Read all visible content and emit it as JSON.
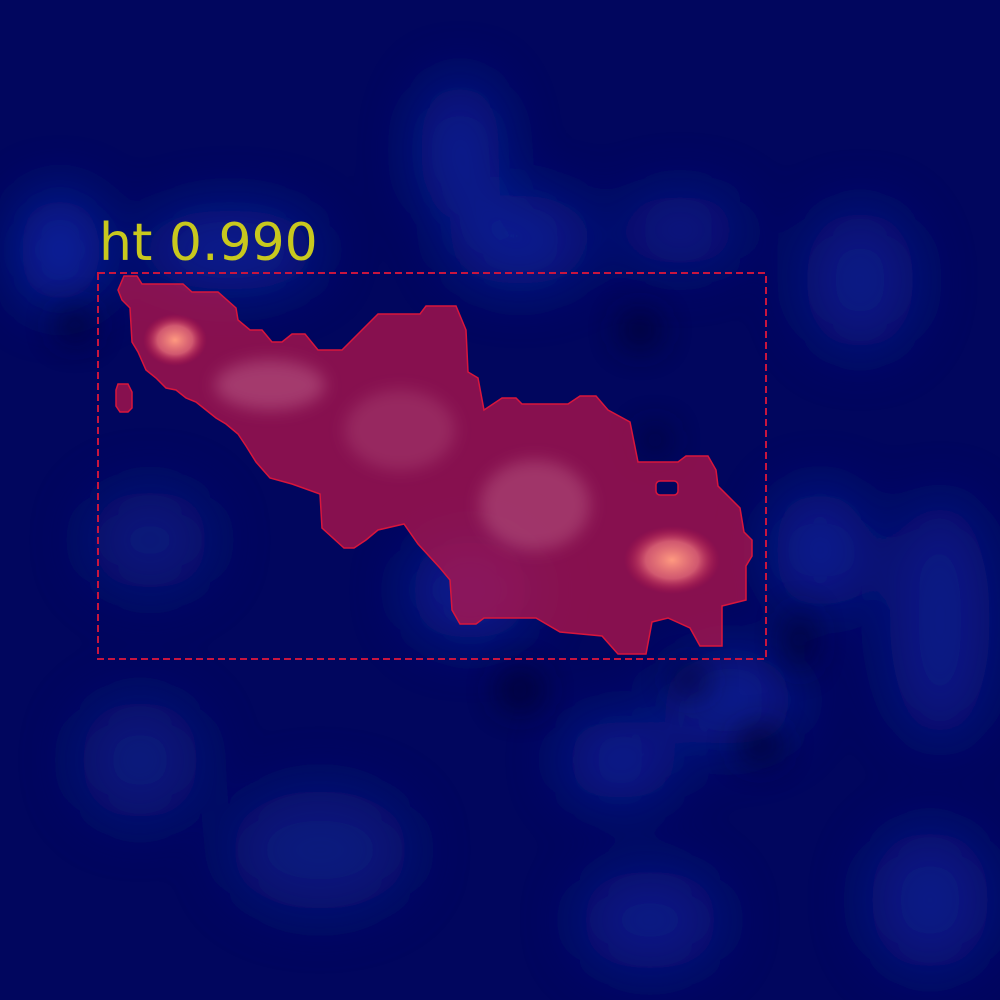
{
  "image": {
    "background_color": "#01065e",
    "heatmap_colors": {
      "low": "#01065e",
      "mid": "#0a2fb0",
      "high": "#ff8a75"
    }
  },
  "detection": {
    "label": "ht",
    "score": "0.990",
    "caption": "ht 0.990",
    "box_color": "#c8153f",
    "mask_color": "#c01548",
    "label_color": "#c8c81e"
  }
}
